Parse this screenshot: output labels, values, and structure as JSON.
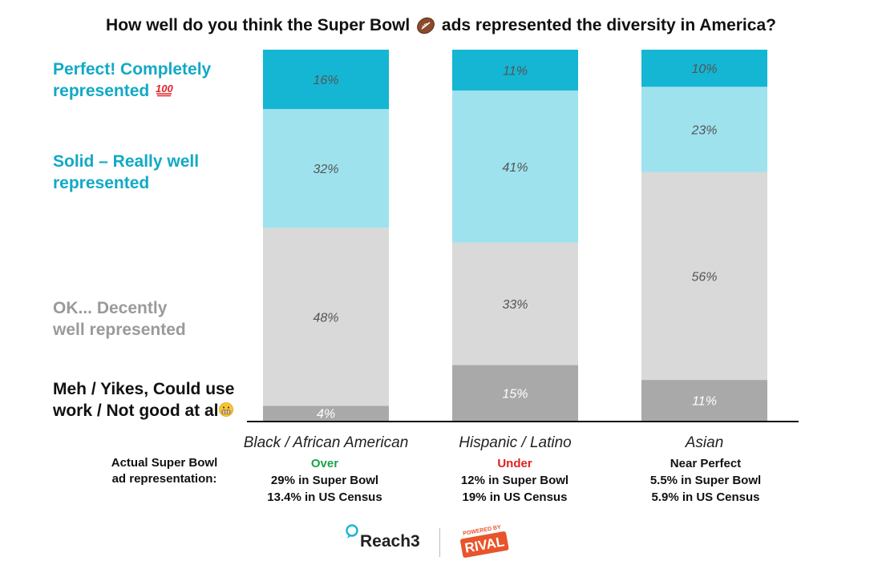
{
  "title": {
    "before": "How well do you think the Super Bowl",
    "after": "ads represented the diversity in America?",
    "icon": "football-icon"
  },
  "legend": {
    "perfect": {
      "line1": "Perfect! Completely",
      "line2": "represented",
      "emoji": "hundred-points-icon",
      "color": "#12A9C6"
    },
    "solid": {
      "line1": "Solid – Really well",
      "line2": "represented",
      "color": "#12A9C6"
    },
    "ok": {
      "line1": "OK... Decently",
      "line2": "well represented",
      "color": "#9A9A9A"
    },
    "meh": {
      "line1": "Meh / Yikes, Could use",
      "line2": "work / Not good at al",
      "emoji": "grimacing-face-icon",
      "color": "#111111"
    }
  },
  "colors": {
    "perfect": "#14B6D3",
    "solid": "#9EE2EE",
    "ok": "#D9D9D9",
    "meh": "#A9A9A9",
    "over": "#1AA34A",
    "under": "#E02020"
  },
  "chart_data": {
    "type": "bar",
    "stacked": true,
    "orientation": "vertical",
    "title": "How well do you think the Super Bowl ads represented the diversity in America?",
    "categories": [
      "Black / African American",
      "Hispanic / Latino",
      "Asian"
    ],
    "series": [
      {
        "name": "Meh / Yikes, Could use work / Not good at all",
        "key": "meh",
        "values": [
          4,
          15,
          11
        ],
        "labels": [
          "4%",
          "15%",
          "11%"
        ]
      },
      {
        "name": "OK... Decently well represented",
        "key": "ok",
        "values": [
          48,
          33,
          56
        ],
        "labels": [
          "48%",
          "33%",
          "56%"
        ]
      },
      {
        "name": "Solid – Really well represented",
        "key": "solid",
        "values": [
          32,
          41,
          23
        ],
        "labels": [
          "32%",
          "41%",
          "23%"
        ]
      },
      {
        "name": "Perfect! Completely represented",
        "key": "perfect",
        "values": [
          16,
          11,
          10
        ],
        "labels": [
          "16%",
          "11%",
          "10%"
        ]
      }
    ],
    "ylim": [
      0,
      100
    ],
    "xlabel": "",
    "ylabel": ""
  },
  "representation": {
    "heading": {
      "line1": "Actual Super Bowl",
      "line2": "ad representation:"
    },
    "columns": [
      {
        "status": "Over",
        "status_color": "#1AA34A",
        "line1": "29% in Super Bowl",
        "line2": "13.4% in US Census"
      },
      {
        "status": "Under",
        "status_color": "#E02020",
        "line1": "12% in Super Bowl",
        "line2": "19% in US Census"
      },
      {
        "status": "Near Perfect",
        "status_color": "#111111",
        "line1": "5.5% in Super Bowl",
        "line2": "5.9% in US Census"
      }
    ]
  },
  "footer": {
    "reach3": "Reach3",
    "rival_powered": "POWERED BY",
    "rival": "RIVAL"
  }
}
